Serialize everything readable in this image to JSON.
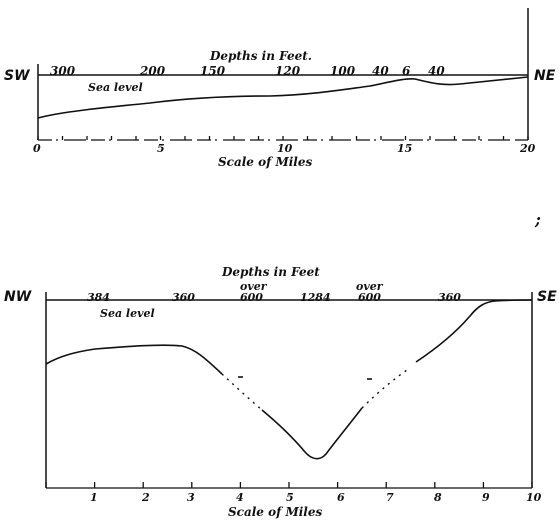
{
  "profile_top": {
    "title": "Depths in Feet.",
    "left_label": "SW",
    "right_label": "NE",
    "sea_level_label": "Sea level",
    "depth_labels": [
      "300",
      "200",
      "150",
      "120",
      "100",
      "40",
      "6",
      "40"
    ],
    "scale_ticks": [
      "0",
      "5",
      "10",
      "15",
      "20"
    ],
    "scale_label": "Scale of Miles"
  },
  "profile_bottom": {
    "title": "Depths in Feet",
    "left_label": "NW",
    "right_label": "SE",
    "sea_level_label": "Sea level",
    "depth_labels": [
      "384",
      "360",
      "over",
      "600",
      "1284",
      "over",
      "600",
      "360"
    ],
    "scale_ticks": [
      "1",
      "2",
      "3",
      "4",
      "5",
      "6",
      "7",
      "8",
      "9",
      "10"
    ],
    "scale_label": "Scale of Miles"
  },
  "side_mark": ";"
}
